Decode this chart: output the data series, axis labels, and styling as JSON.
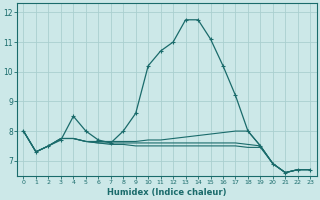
{
  "xlabel": "Humidex (Indice chaleur)",
  "background_color": "#cce8e8",
  "line_color": "#1a6b6b",
  "grid_color": "#aacfcf",
  "x": [
    0,
    1,
    2,
    3,
    4,
    5,
    6,
    7,
    8,
    9,
    10,
    11,
    12,
    13,
    14,
    15,
    16,
    17,
    18,
    19,
    20,
    21,
    22,
    23
  ],
  "series": [
    [
      8.0,
      7.3,
      7.5,
      7.7,
      8.5,
      8.0,
      7.7,
      7.6,
      8.0,
      8.6,
      10.2,
      10.7,
      11.0,
      11.75,
      11.75,
      11.1,
      10.2,
      9.2,
      8.0,
      7.5,
      6.9,
      6.6,
      6.7,
      6.7
    ],
    [
      8.0,
      7.3,
      7.5,
      7.75,
      7.75,
      7.65,
      7.65,
      7.65,
      7.65,
      7.65,
      7.7,
      7.7,
      7.75,
      7.8,
      7.85,
      7.9,
      7.95,
      8.0,
      8.0,
      7.5,
      6.9,
      6.6,
      6.7,
      6.7
    ],
    [
      8.0,
      7.3,
      7.5,
      7.75,
      7.75,
      7.65,
      7.6,
      7.6,
      7.6,
      7.6,
      7.6,
      7.6,
      7.6,
      7.6,
      7.6,
      7.6,
      7.6,
      7.6,
      7.55,
      7.5,
      6.9,
      6.6,
      6.7,
      6.7
    ],
    [
      8.0,
      7.3,
      7.5,
      7.75,
      7.75,
      7.65,
      7.6,
      7.55,
      7.55,
      7.5,
      7.5,
      7.5,
      7.5,
      7.5,
      7.5,
      7.5,
      7.5,
      7.5,
      7.45,
      7.45,
      6.9,
      6.6,
      6.7,
      6.7
    ]
  ],
  "xlim": [
    -0.5,
    23.5
  ],
  "ylim": [
    6.5,
    12.3
  ],
  "yticks": [
    7,
    8,
    9,
    10,
    11,
    12
  ],
  "xticks": [
    0,
    1,
    2,
    3,
    4,
    5,
    6,
    7,
    8,
    9,
    10,
    11,
    12,
    13,
    14,
    15,
    16,
    17,
    18,
    19,
    20,
    21,
    22,
    23
  ]
}
